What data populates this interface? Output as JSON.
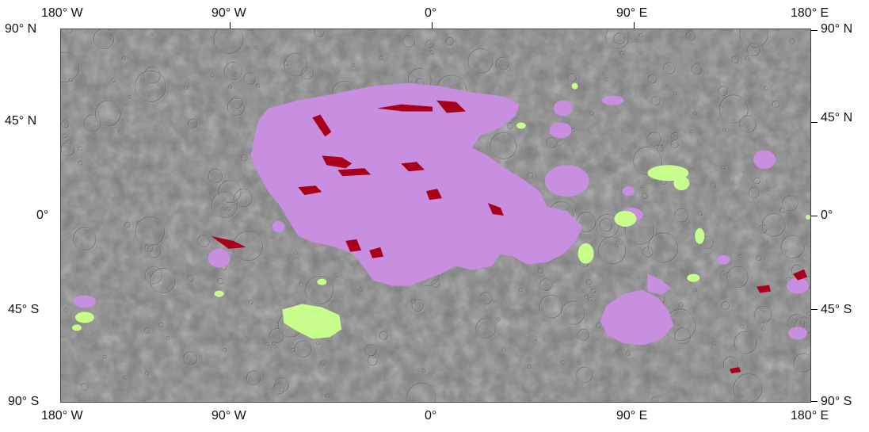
{
  "map": {
    "projection": "equirectangular",
    "base_color": "#7c7c7c",
    "lon_range": [
      -180,
      180
    ],
    "lat_range": [
      -90,
      90
    ]
  },
  "axes": {
    "top": [
      "180° W",
      "90° W",
      "0°",
      "90° E",
      "180° E"
    ],
    "bottom": [
      "180° W",
      "90° W",
      "0°",
      "90° E",
      "180° E"
    ],
    "left": [
      "90° N",
      "45° N",
      "0°",
      "45° S",
      "90° S"
    ],
    "right": [
      "90° N",
      "45° N",
      "0°",
      "45° S",
      "90° S"
    ]
  },
  "units": {
    "colors": {
      "purple": "#c88ee0",
      "green": "#c8ff8c",
      "red": "#a8001a"
    }
  }
}
